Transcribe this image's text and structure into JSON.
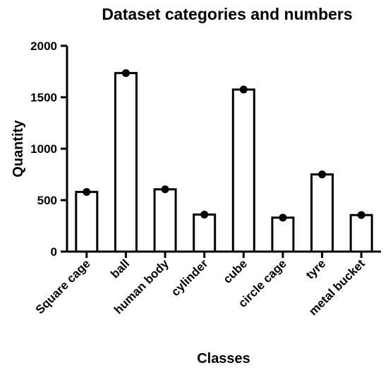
{
  "chart_data": {
    "type": "bar",
    "title": "Dataset categories and numbers",
    "xlabel": "Classes",
    "ylabel": "Quantity",
    "ylim": [
      0,
      2000
    ],
    "yticks": [
      "0",
      "500",
      "1000",
      "1500",
      "2000"
    ],
    "categories": [
      "Square cage",
      "ball",
      "human body",
      "cylinder",
      "cube",
      "circle cage",
      "tyre",
      "metal bucket"
    ],
    "values": [
      580,
      1735,
      605,
      360,
      1575,
      330,
      750,
      355
    ],
    "grid": false,
    "legend": "none",
    "bar_fill": "#ffffff",
    "bar_outline": "#000000"
  }
}
